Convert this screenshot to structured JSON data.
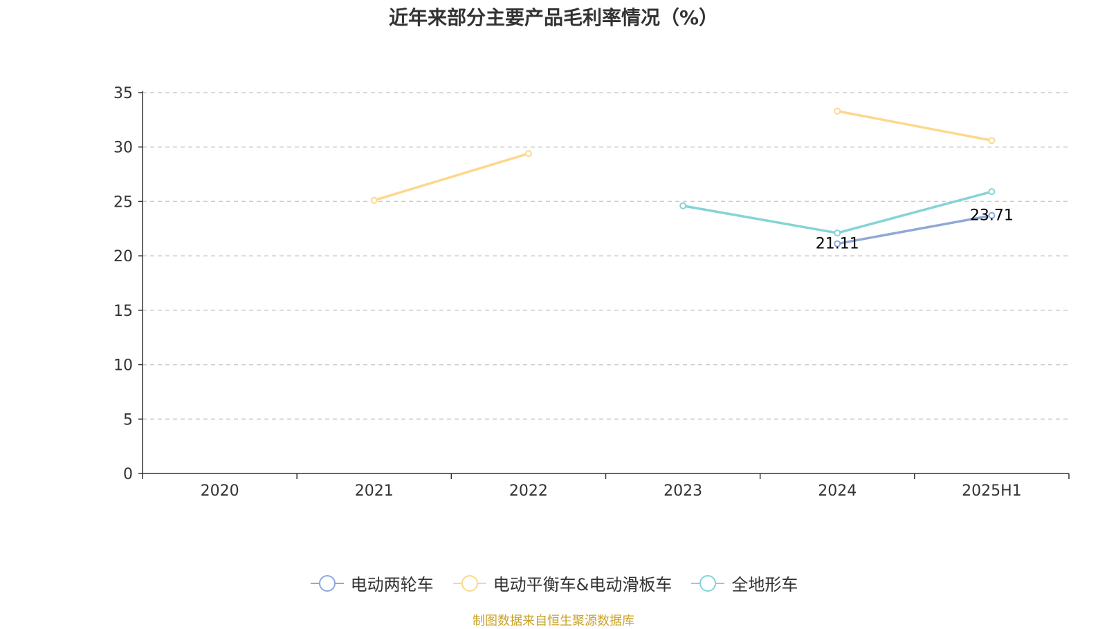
{
  "chart_data": {
    "type": "line",
    "title": "近年来部分主要产品毛利率情况（%）",
    "categories": [
      "2020",
      "2021",
      "2022",
      "2023",
      "2024",
      "2025H1"
    ],
    "ylim": [
      0,
      35
    ],
    "yticks": [
      "0",
      "5",
      "10",
      "15",
      "20",
      "25",
      "30",
      "35"
    ],
    "grid": true,
    "legend_position": "bottom",
    "series": [
      {
        "name": "电动两轮车",
        "color": "#8fa8d6",
        "values": [
          null,
          null,
          null,
          null,
          21.11,
          23.71
        ],
        "labels": [
          null,
          null,
          null,
          null,
          "21.11",
          "23.71"
        ]
      },
      {
        "name": "电动平衡车&电动滑板车",
        "color": "#fcd88c",
        "values": [
          null,
          25.1,
          29.4,
          null,
          33.3,
          30.6
        ],
        "labels": [
          null,
          null,
          null,
          null,
          null,
          null
        ]
      },
      {
        "name": "全地形车",
        "color": "#84d4d6",
        "values": [
          null,
          null,
          null,
          24.6,
          22.1,
          25.9
        ],
        "labels": [
          null,
          null,
          null,
          null,
          null,
          null
        ]
      }
    ]
  },
  "source_note": "制图数据来自恒生聚源数据库"
}
